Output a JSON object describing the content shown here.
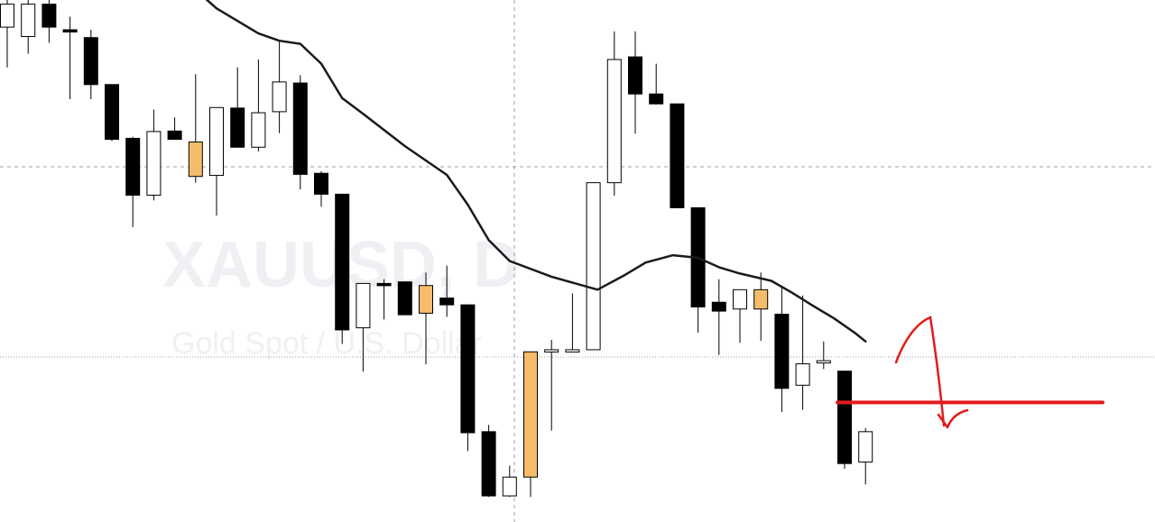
{
  "watermark": {
    "symbol": "XAUUSD, D",
    "description": "Gold Spot / U.S. Dollar"
  },
  "colors": {
    "background": "#ffffff",
    "bear_body": "#000000",
    "bull_body": "#ffffff",
    "highlight_body": "#f5bd6b",
    "wick": "#000000",
    "moving_average": "#1a1a1a",
    "crosshair": "#9aa0a6",
    "annotation": "#e31b1b",
    "watermark": "#eef0f3"
  },
  "chart_data": {
    "type": "candlestick",
    "symbol": "XAUUSD",
    "timeframe": "D",
    "ylim": [
      -0.27,
      1.0
    ],
    "grid": false,
    "candles": [
      {
        "o": 0.948,
        "h": 1.0,
        "l": 0.871,
        "c": 0.992,
        "color": "bull"
      },
      {
        "o": 0.992,
        "h": 1.0,
        "l": 0.897,
        "c": 0.93,
        "color": "bull"
      },
      {
        "o": 0.992,
        "h": 1.0,
        "l": 0.918,
        "c": 0.948,
        "color": "bear"
      },
      {
        "o": 0.943,
        "h": 0.968,
        "l": 0.81,
        "c": 0.94,
        "color": "bear"
      },
      {
        "o": 0.928,
        "h": 0.943,
        "l": 0.81,
        "c": 0.838,
        "color": "bear"
      },
      {
        "o": 0.838,
        "h": 0.838,
        "l": 0.73,
        "c": 0.733,
        "color": "bear"
      },
      {
        "o": 0.735,
        "h": 0.738,
        "l": 0.565,
        "c": 0.626,
        "color": "bear"
      },
      {
        "o": 0.626,
        "h": 0.79,
        "l": 0.616,
        "c": 0.748,
        "color": "bull"
      },
      {
        "o": 0.749,
        "h": 0.775,
        "l": 0.733,
        "c": 0.733,
        "color": "bear"
      },
      {
        "o": 0.728,
        "h": 0.858,
        "l": 0.65,
        "c": 0.662,
        "color": "highlight"
      },
      {
        "o": 0.664,
        "h": 0.794,
        "l": 0.587,
        "c": 0.794,
        "color": "bull"
      },
      {
        "o": 0.793,
        "h": 0.871,
        "l": 0.717,
        "c": 0.718,
        "color": "bear"
      },
      {
        "o": 0.718,
        "h": 0.886,
        "l": 0.71,
        "c": 0.784,
        "color": "bull"
      },
      {
        "o": 0.786,
        "h": 0.921,
        "l": 0.745,
        "c": 0.843,
        "color": "bull"
      },
      {
        "o": 0.841,
        "h": 0.856,
        "l": 0.637,
        "c": 0.666,
        "color": "bear"
      },
      {
        "o": 0.668,
        "h": 0.672,
        "l": 0.604,
        "c": 0.628,
        "color": "bear"
      },
      {
        "o": 0.628,
        "h": 0.628,
        "l": 0.341,
        "c": 0.368,
        "color": "bear"
      },
      {
        "o": 0.372,
        "h": 0.453,
        "l": 0.288,
        "c": 0.457,
        "color": "bull"
      },
      {
        "o": 0.457,
        "h": 0.465,
        "l": 0.388,
        "c": 0.453,
        "color": "bear"
      },
      {
        "o": 0.46,
        "h": 0.46,
        "l": 0.397,
        "c": 0.397,
        "color": "bear"
      },
      {
        "o": 0.4,
        "h": 0.478,
        "l": 0.302,
        "c": 0.453,
        "color": "highlight"
      },
      {
        "o": 0.429,
        "h": 0.491,
        "l": 0.393,
        "c": 0.416,
        "color": "bear"
      },
      {
        "o": 0.416,
        "h": 0.416,
        "l": 0.136,
        "c": 0.171,
        "color": "bear"
      },
      {
        "o": 0.173,
        "h": 0.186,
        "l": 0.048,
        "c": 0.05,
        "color": "bear"
      },
      {
        "o": 0.05,
        "h": 0.108,
        "l": 0.048,
        "c": 0.086,
        "color": "bull"
      },
      {
        "o": 0.086,
        "h": 0.326,
        "l": 0.048,
        "c": 0.326,
        "color": "highlight"
      },
      {
        "o": 0.326,
        "h": 0.349,
        "l": 0.175,
        "c": 0.33,
        "color": "bull"
      },
      {
        "o": 0.33,
        "h": 0.438,
        "l": 0.33,
        "c": 0.33,
        "color": "bull"
      },
      {
        "o": 0.33,
        "h": 0.65,
        "l": 0.33,
        "c": 0.65,
        "color": "bull"
      },
      {
        "o": 0.65,
        "h": 0.94,
        "l": 0.625,
        "c": 0.886,
        "color": "bull"
      },
      {
        "o": 0.891,
        "h": 0.94,
        "l": 0.744,
        "c": 0.82,
        "color": "bear"
      },
      {
        "o": 0.82,
        "h": 0.878,
        "l": 0.8,
        "c": 0.801,
        "color": "bear"
      },
      {
        "o": 0.801,
        "h": 0.801,
        "l": 0.606,
        "c": 0.602,
        "color": "bear"
      },
      {
        "o": 0.602,
        "h": 0.602,
        "l": 0.363,
        "c": 0.412,
        "color": "bear"
      },
      {
        "o": 0.421,
        "h": 0.465,
        "l": 0.32,
        "c": 0.404,
        "color": "bear"
      },
      {
        "o": 0.408,
        "h": 0.437,
        "l": 0.343,
        "c": 0.445,
        "color": "bull"
      },
      {
        "o": 0.445,
        "h": 0.478,
        "l": 0.347,
        "c": 0.408,
        "color": "highlight"
      },
      {
        "o": 0.398,
        "h": 0.453,
        "l": 0.211,
        "c": 0.256,
        "color": "bear"
      },
      {
        "o": 0.262,
        "h": 0.434,
        "l": 0.215,
        "c": 0.303,
        "color": "bull"
      },
      {
        "o": 0.309,
        "h": 0.346,
        "l": 0.293,
        "c": 0.309,
        "color": "bull"
      },
      {
        "o": 0.289,
        "h": 0.289,
        "l": 0.102,
        "c": 0.112,
        "color": "bear"
      },
      {
        "o": 0.115,
        "h": 0.18,
        "l": 0.072,
        "c": 0.173,
        "color": "bull"
      }
    ],
    "moving_average": [
      {
        "i": 8,
        "v": 1.055
      },
      {
        "i": 10,
        "v": 0.984
      },
      {
        "i": 12,
        "v": 0.936
      },
      {
        "i": 13,
        "v": 0.922
      },
      {
        "i": 14,
        "v": 0.916
      },
      {
        "i": 15,
        "v": 0.878
      },
      {
        "i": 16,
        "v": 0.812
      },
      {
        "i": 17,
        "v": 0.782
      },
      {
        "i": 19,
        "v": 0.72
      },
      {
        "i": 21,
        "v": 0.665
      },
      {
        "i": 22,
        "v": 0.608
      },
      {
        "i": 23,
        "v": 0.54
      },
      {
        "i": 24,
        "v": 0.5
      },
      {
        "i": 26,
        "v": 0.47
      },
      {
        "i": 28.2,
        "v": 0.445
      },
      {
        "i": 29.5,
        "v": 0.473
      },
      {
        "i": 30.5,
        "v": 0.497
      },
      {
        "i": 31.8,
        "v": 0.511
      },
      {
        "i": 33,
        "v": 0.506
      },
      {
        "i": 34,
        "v": 0.488
      },
      {
        "i": 35,
        "v": 0.476
      },
      {
        "i": 36.5,
        "v": 0.462
      },
      {
        "i": 37.5,
        "v": 0.439
      },
      {
        "i": 38.5,
        "v": 0.414
      },
      {
        "i": 39.5,
        "v": 0.39
      },
      {
        "i": 40.5,
        "v": 0.362
      },
      {
        "i": 41,
        "v": 0.346
      }
    ],
    "level": 0.229
  }
}
